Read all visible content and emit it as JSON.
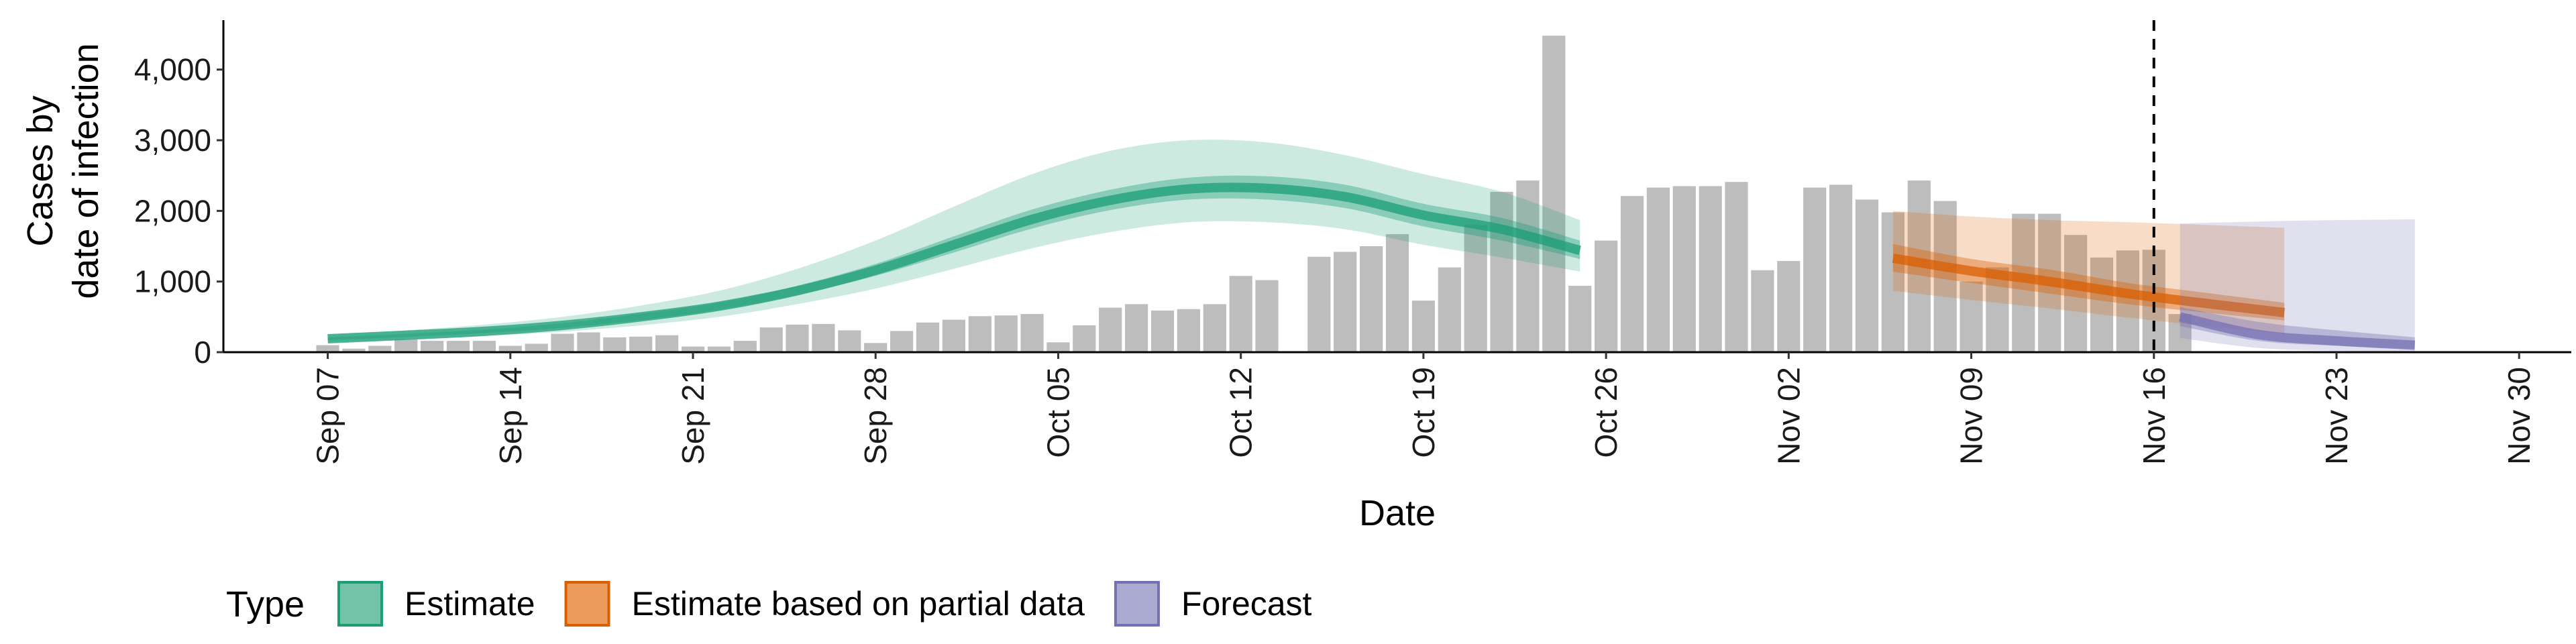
{
  "chart_data": {
    "type": "bar",
    "title": "",
    "xlabel": "Date",
    "ylabel_lines": [
      "Cases by",
      "date of infection"
    ],
    "ylim": [
      0,
      4700
    ],
    "yticks": [
      0,
      1000,
      2000,
      3000,
      4000
    ],
    "ytick_labels": [
      "0",
      "1,000",
      "2,000",
      "3,000",
      "4,000"
    ],
    "x_start": "2020-09-03",
    "x_end": "2020-12-02",
    "x_ticks": [
      {
        "date": "2020-09-07",
        "label": "Sep 07"
      },
      {
        "date": "2020-09-14",
        "label": "Sep 14"
      },
      {
        "date": "2020-09-21",
        "label": "Sep 21"
      },
      {
        "date": "2020-09-28",
        "label": "Sep 28"
      },
      {
        "date": "2020-10-05",
        "label": "Oct 05"
      },
      {
        "date": "2020-10-12",
        "label": "Oct 12"
      },
      {
        "date": "2020-10-19",
        "label": "Oct 19"
      },
      {
        "date": "2020-10-26",
        "label": "Oct 26"
      },
      {
        "date": "2020-11-02",
        "label": "Nov 02"
      },
      {
        "date": "2020-11-09",
        "label": "Nov 09"
      },
      {
        "date": "2020-11-16",
        "label": "Nov 16"
      },
      {
        "date": "2020-11-23",
        "label": "Nov 23"
      },
      {
        "date": "2020-11-30",
        "label": "Nov 30"
      }
    ],
    "vline_date": "2020-11-16",
    "bars": {
      "first_date": "2020-09-07",
      "values": [
        100,
        50,
        90,
        180,
        160,
        160,
        160,
        90,
        120,
        260,
        280,
        210,
        220,
        240,
        80,
        80,
        160,
        350,
        390,
        400,
        310,
        130,
        300,
        420,
        460,
        510,
        520,
        540,
        140,
        380,
        630,
        680,
        590,
        610,
        680,
        1080,
        1020,
        0,
        1350,
        1420,
        1500,
        1670,
        730,
        1200,
        1800,
        2270,
        2430,
        4480,
        940,
        1580,
        2210,
        2330,
        2350,
        2350,
        2410,
        1160,
        1290,
        2330,
        2370,
        2160,
        1980,
        2430,
        2140,
        1000,
        1200,
        1960,
        1960,
        1660,
        1340,
        1440,
        1450,
        540
      ]
    },
    "series": [
      {
        "name": "Estimate",
        "color": "#1b9e77",
        "start_date": "2020-09-07",
        "median": [
          190,
          240,
          295,
          380,
          500,
          650,
          870,
          1160,
          1520,
          1880,
          2150,
          2310,
          2320,
          2200,
          1940,
          1740,
          1440
        ],
        "inner_lo": [
          170,
          215,
          270,
          345,
          455,
          600,
          810,
          1080,
          1410,
          1750,
          2010,
          2160,
          2160,
          2040,
          1780,
          1580,
          1320
        ],
        "inner_hi": [
          210,
          260,
          320,
          410,
          545,
          700,
          940,
          1250,
          1640,
          2020,
          2300,
          2470,
          2490,
          2370,
          2100,
          1900,
          1580
        ],
        "outer_lo": [
          140,
          180,
          230,
          290,
          380,
          500,
          680,
          900,
          1180,
          1470,
          1700,
          1840,
          1840,
          1740,
          1520,
          1340,
          1140
        ],
        "outer_hi": [
          250,
          310,
          390,
          500,
          660,
          870,
          1180,
          1580,
          2060,
          2520,
          2850,
          3000,
          2970,
          2790,
          2520,
          2270,
          1870
        ]
      },
      {
        "name": "Estimate based on partial data",
        "color": "#d95f02",
        "start_date": "2020-11-06",
        "median": [
          1330,
          1150,
          1000,
          830,
          690,
          560
        ],
        "inner_lo": [
          1140,
          980,
          830,
          680,
          560,
          450
        ],
        "inner_hi": [
          1530,
          1320,
          1170,
          980,
          840,
          700
        ],
        "outer_lo": [
          870,
          740,
          620,
          490,
          370,
          260
        ],
        "outer_hi": [
          2000,
          1920,
          1870,
          1840,
          1800,
          1760
        ]
      },
      {
        "name": "Forecast",
        "color": "#7570b3",
        "start_date": "2020-11-17",
        "median": [
          500,
          250,
          160,
          100
        ],
        "inner_lo": [
          370,
          160,
          90,
          50
        ],
        "inner_hi": [
          640,
          430,
          310,
          210
        ],
        "outer_lo": [
          200,
          60,
          20,
          10
        ],
        "outer_hi": [
          1820,
          1850,
          1870,
          1880
        ]
      }
    ],
    "legend": {
      "title": "Type",
      "position": "bottom",
      "items": [
        {
          "label": "Estimate",
          "fill": "#72c3a7",
          "stroke": "#1b9e77"
        },
        {
          "label": "Estimate based on partial data",
          "fill": "#eb9c5c",
          "stroke": "#d95f02"
        },
        {
          "label": "Forecast",
          "fill": "#ababd2",
          "stroke": "#7570b3"
        }
      ]
    }
  }
}
